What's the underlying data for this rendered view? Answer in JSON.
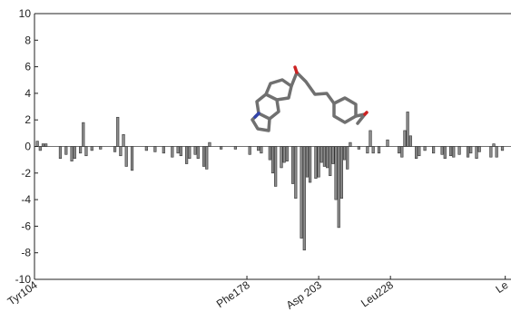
{
  "chart_data": {
    "type": "bar",
    "x": [
      105,
      106,
      107,
      108,
      113,
      115,
      117,
      118,
      120,
      121,
      122,
      124,
      127,
      132,
      133,
      134,
      135,
      136,
      138,
      143,
      146,
      149,
      152,
      154,
      155,
      157,
      158,
      160,
      161,
      163,
      164,
      165,
      169,
      174,
      179,
      182,
      183,
      186,
      187,
      188,
      190,
      191,
      192,
      194,
      195,
      197,
      198,
      199,
      200,
      202,
      203,
      204,
      205,
      206,
      207,
      208,
      209,
      210,
      211,
      212,
      213,
      214,
      217,
      220,
      221,
      222,
      224,
      227,
      231,
      232,
      233,
      234,
      235,
      237,
      238,
      240,
      243,
      246,
      247,
      249,
      250,
      252,
      255,
      256,
      258,
      259,
      263,
      264,
      265,
      267
    ],
    "values": [
      0.4,
      -0.3,
      0.2,
      0.2,
      -0.9,
      -0.6,
      -1.1,
      -0.9,
      -0.5,
      1.8,
      -0.7,
      -0.3,
      -0.2,
      -0.4,
      2.2,
      -0.7,
      0.9,
      -1.5,
      -1.8,
      -0.3,
      -0.4,
      -0.5,
      -0.8,
      -0.5,
      -0.7,
      -1.3,
      -0.9,
      -0.6,
      -0.9,
      -1.5,
      -1.7,
      0.3,
      -0.2,
      -0.2,
      -0.6,
      -0.3,
      -0.5,
      -1.0,
      -2.0,
      -3.0,
      -1.6,
      -1.2,
      -1.1,
      -2.8,
      -3.9,
      -6.9,
      -7.8,
      -2.3,
      -2.7,
      -2.4,
      -2.3,
      -1.2,
      -1.5,
      -1.6,
      -2.2,
      -1.3,
      -4.0,
      -6.1,
      -3.9,
      -1.0,
      -1.7,
      0.3,
      -0.2,
      -0.5,
      1.2,
      -0.5,
      -0.5,
      0.5,
      -0.5,
      -0.8,
      1.2,
      2.6,
      0.8,
      -0.9,
      -0.7,
      -0.3,
      -0.5,
      -0.6,
      -0.9,
      -0.7,
      -0.8,
      -0.6,
      -0.8,
      -0.5,
      -0.9,
      -0.4,
      -0.8,
      0.2,
      -0.8,
      -0.3
    ],
    "color": "#8c8c8c",
    "xlim": [
      104,
      270
    ],
    "xticks": [
      {
        "value": 104,
        "label": "Tyr104"
      },
      {
        "value": 178,
        "label": "Phe178"
      },
      {
        "value": 203,
        "label": "Asp 203"
      },
      {
        "value": 228,
        "label": "Leu228"
      },
      {
        "value": 268,
        "label": "Le"
      }
    ],
    "ylim": [
      -10,
      10
    ],
    "yticks": [
      -10,
      -8,
      -6,
      -4,
      -2,
      0,
      2,
      4,
      6,
      8,
      10
    ]
  }
}
